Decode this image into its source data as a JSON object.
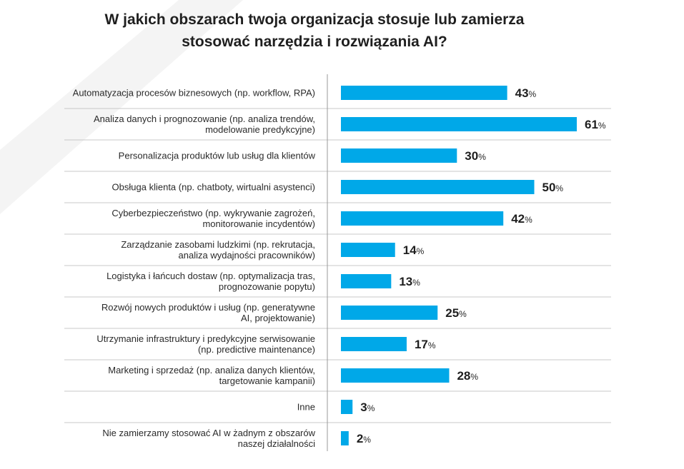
{
  "title": {
    "line1": "W jakich obszarach twoja organizacja stosuje lub zamierza",
    "line2": "stosować narzędzia i rozwiązania AI?"
  },
  "colors": {
    "bar": "#00a8e8",
    "label": "#2a2a2a",
    "value": "#1f1f1f",
    "divider": "#c8c8c8",
    "axis": "#9a9a9a",
    "background_shape": "#f3f3f3"
  },
  "chart_data": {
    "type": "bar",
    "orientation": "horizontal",
    "title": "W jakich obszarach twoja organizacja stosuje lub zamierza stosować narzędzia i rozwiązania AI?",
    "xlabel": "",
    "ylabel": "",
    "unit": "%",
    "xlim": [
      0,
      61
    ],
    "grid": false,
    "legend": "none",
    "categories": [
      [
        "Automatyzacja procesów biznesowych (np. workflow, RPA)"
      ],
      [
        "Analiza danych i prognozowanie (np. analiza trendów,",
        "modelowanie predykcyjne)"
      ],
      [
        "Personalizacja produktów lub usług dla klientów"
      ],
      [
        "Obsługa klienta (np. chatboty, wirtualni asystenci)"
      ],
      [
        "Cyberbezpieczeństwo (np. wykrywanie zagrożeń,",
        "monitorowanie incydentów)"
      ],
      [
        "Zarządzanie zasobami ludzkimi (np. rekrutacja,",
        "analiza wydajności pracowników)"
      ],
      [
        "Logistyka i łańcuch dostaw (np. optymalizacja tras,",
        "prognozowanie popytu)"
      ],
      [
        "Rozwój nowych produktów i usług (np. generatywne",
        "AI, projektowanie)"
      ],
      [
        "Utrzymanie infrastruktury i predykcyjne serwisowanie",
        "(np. predictive maintenance)"
      ],
      [
        "Marketing i sprzedaż (np. analiza danych klientów,",
        "targetowanie kampanii)"
      ],
      [
        "Inne"
      ],
      [
        "Nie zamierzamy stosować AI w żadnym z obszarów",
        "naszej działalności"
      ]
    ],
    "values": [
      43,
      61,
      30,
      50,
      42,
      14,
      13,
      25,
      17,
      28,
      3,
      2
    ]
  }
}
